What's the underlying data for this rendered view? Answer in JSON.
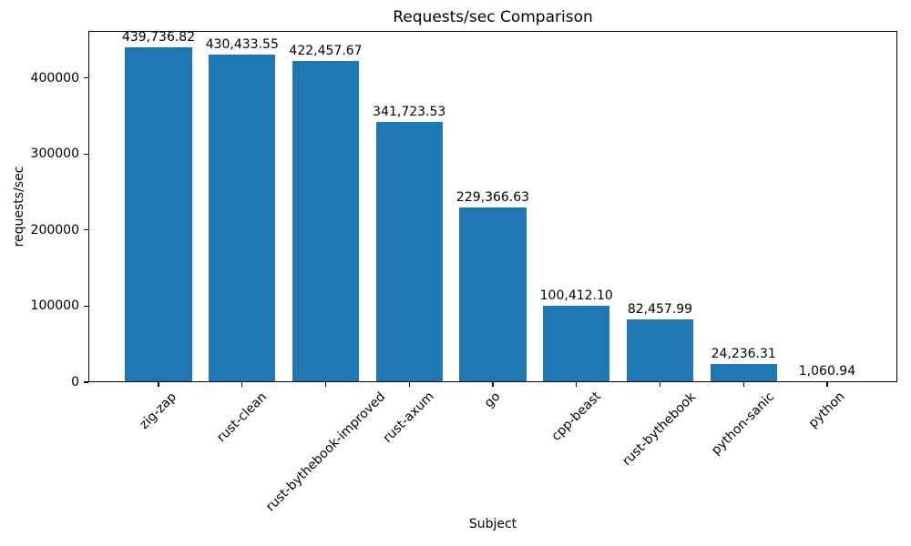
{
  "chart_data": {
    "type": "bar",
    "title": "Requests/sec Comparison",
    "xlabel": "Subject",
    "ylabel": "requests/sec",
    "categories": [
      "zig-zap",
      "rust-clean",
      "rust-bythebook-improved",
      "rust-axum",
      "go",
      "cpp-beast",
      "rust-bythebook",
      "python-sanic",
      "python"
    ],
    "values": [
      439736.82,
      430433.55,
      422457.67,
      341723.53,
      229366.63,
      100412.1,
      82457.99,
      24236.31,
      1060.94
    ],
    "value_labels": [
      "439,736.82",
      "430,433.55",
      "422,457.67",
      "341,723.53",
      "229,366.63",
      "100,412.10",
      "82,457.99",
      "24,236.31",
      "1,060.94"
    ],
    "ylim": [
      0,
      461723.66
    ],
    "yticks": [
      0,
      100000,
      200000,
      300000,
      400000
    ],
    "ytick_labels": [
      "0",
      "100000",
      "200000",
      "300000",
      "400000"
    ],
    "bar_color": "#1f77b4",
    "axis_color": "#000000",
    "x_tick_rotation": 45,
    "grid": false,
    "legend_position": "none"
  }
}
